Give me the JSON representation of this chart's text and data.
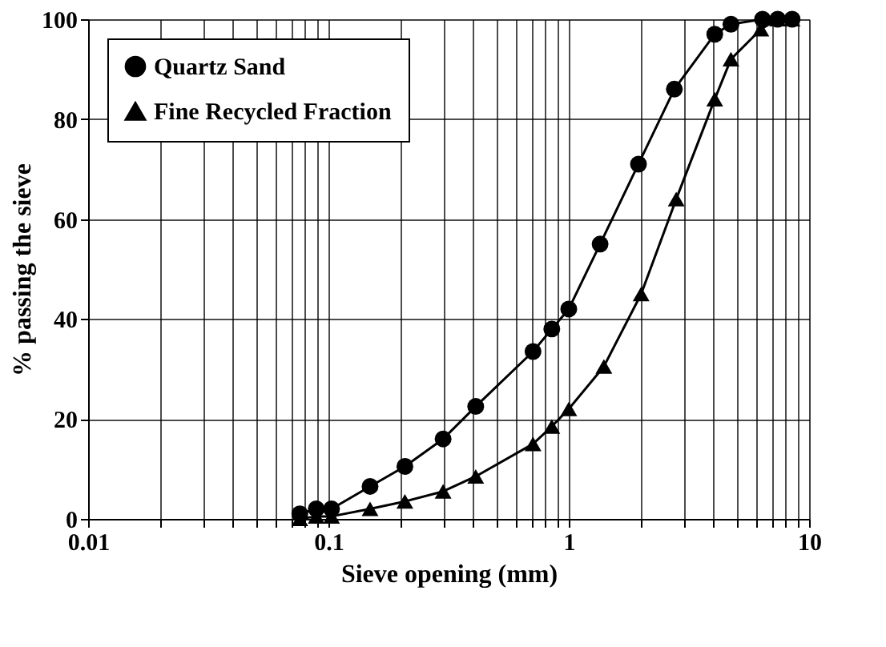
{
  "chart_data": {
    "type": "line",
    "xlabel": "Sieve opening (mm)",
    "ylabel": "% passing the sieve",
    "log": "x",
    "xlim": [
      0.01,
      10
    ],
    "ylim": [
      0,
      100
    ],
    "xticks": [
      0.01,
      {
        "value": 0.02,
        "label": null
      },
      {
        "value": 0.03,
        "label": null
      },
      {
        "value": 0.04,
        "label": null
      },
      {
        "value": 0.05,
        "label": null
      },
      {
        "value": 0.06,
        "label": null
      },
      {
        "value": 0.07,
        "label": null
      },
      {
        "value": 0.08,
        "label": null
      },
      {
        "value": 0.09,
        "label": null
      },
      0.1,
      {
        "value": 0.2,
        "label": null
      },
      {
        "value": 0.3,
        "label": null
      },
      {
        "value": 0.4,
        "label": null
      },
      {
        "value": 0.5,
        "label": null
      },
      {
        "value": 0.6,
        "label": null
      },
      {
        "value": 0.7,
        "label": null
      },
      {
        "value": 0.8,
        "label": null
      },
      {
        "value": 0.9,
        "label": null
      },
      1,
      {
        "value": 2,
        "label": null
      },
      {
        "value": 3,
        "label": null
      },
      {
        "value": 4,
        "label": null
      },
      {
        "value": 5,
        "label": null
      },
      {
        "value": 6,
        "label": null
      },
      {
        "value": 7,
        "label": null
      },
      {
        "value": 8,
        "label": null
      },
      {
        "value": 9,
        "label": null
      },
      10
    ],
    "yticks": [
      0,
      20,
      40,
      60,
      80,
      100
    ],
    "grid": true,
    "legend": "top left",
    "line_style": "solid",
    "series": [
      {
        "name": "Quartz Sand",
        "color": "#000000",
        "marker": "circle",
        "x": [
          0.076,
          0.089,
          0.103,
          0.149,
          0.208,
          0.3,
          0.41,
          0.71,
          0.85,
          1.0,
          1.35,
          1.95,
          2.75,
          4.05,
          4.73,
          6.4,
          7.4,
          8.5
        ],
        "values": [
          1,
          2,
          2,
          6.5,
          10.5,
          16,
          22.5,
          33.5,
          38,
          42,
          55,
          71,
          86,
          97,
          99,
          100,
          100,
          100
        ]
      },
      {
        "name": "Fine Recycled Fraction",
        "color": "#000000",
        "marker": "triangle",
        "x": [
          0.076,
          0.089,
          0.103,
          0.149,
          0.208,
          0.3,
          0.41,
          0.71,
          0.85,
          1.0,
          1.4,
          2.0,
          2.8,
          4.05,
          4.73,
          6.3,
          7.4,
          8.5
        ],
        "values": [
          0,
          0.5,
          0.5,
          2,
          3.5,
          5.5,
          8.5,
          15,
          18.5,
          22,
          30.5,
          45,
          64,
          84,
          92,
          98,
          100,
          100
        ]
      }
    ]
  }
}
